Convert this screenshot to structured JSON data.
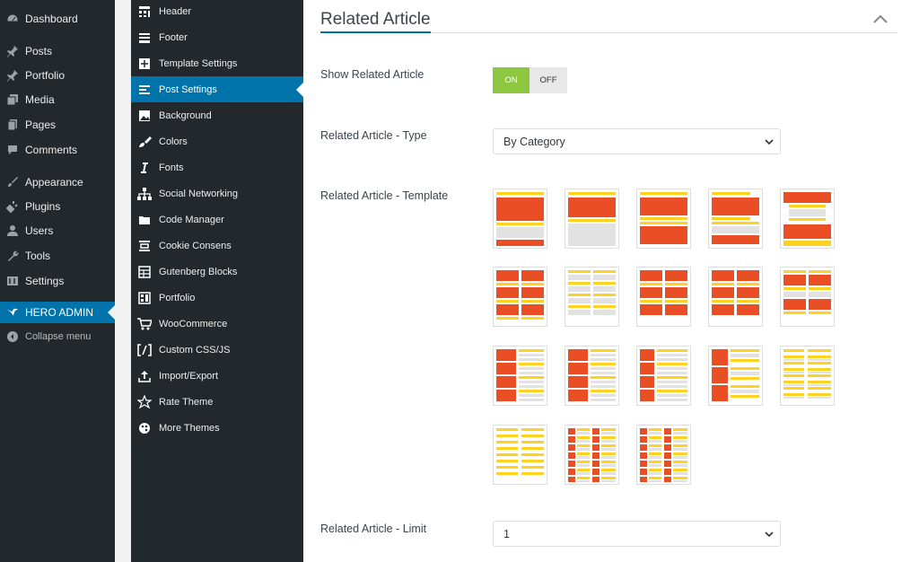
{
  "wp_menu": {
    "items": [
      {
        "label": "Dashboard",
        "icon": "dashboard-icon"
      },
      {
        "label": "Posts",
        "icon": "pin-icon"
      },
      {
        "label": "Portfolio",
        "icon": "pin-icon"
      },
      {
        "label": "Media",
        "icon": "media-icon"
      },
      {
        "label": "Pages",
        "icon": "pages-icon"
      },
      {
        "label": "Comments",
        "icon": "comment-icon"
      },
      {
        "label": "Appearance",
        "icon": "brush-icon"
      },
      {
        "label": "Plugins",
        "icon": "plugin-icon"
      },
      {
        "label": "Users",
        "icon": "user-icon"
      },
      {
        "label": "Tools",
        "icon": "wrench-icon"
      },
      {
        "label": "Settings",
        "icon": "settings-icon"
      },
      {
        "label": "HERO ADMIN",
        "icon": "bird-icon"
      },
      {
        "label": "Collapse menu",
        "icon": "collapse-icon"
      }
    ]
  },
  "theme_menu": {
    "items": [
      {
        "label": "Header"
      },
      {
        "label": "Footer"
      },
      {
        "label": "Template Settings"
      },
      {
        "label": "Post Settings"
      },
      {
        "label": "Background"
      },
      {
        "label": "Colors"
      },
      {
        "label": "Fonts"
      },
      {
        "label": "Social Networking"
      },
      {
        "label": "Code Manager"
      },
      {
        "label": "Cookie Consens"
      },
      {
        "label": "Gutenberg Blocks"
      },
      {
        "label": "Portfolio"
      },
      {
        "label": "WooCommerce"
      },
      {
        "label": "Custom CSS/JS"
      },
      {
        "label": "Import/Export"
      },
      {
        "label": "Rate Theme"
      },
      {
        "label": "More Themes"
      }
    ]
  },
  "main": {
    "section_title": "Related Article",
    "show_label": "Show Related Article",
    "toggle_on": "ON",
    "toggle_off": "OFF",
    "type_label": "Related Article - Type",
    "type_value": "By Category",
    "template_label": "Related Article - Template",
    "limit_label": "Related Article - Limit",
    "limit_value": "1"
  },
  "colors": {
    "accent": "#0073aa",
    "toggle_on": "#8dc63f",
    "template_red": "#e94e24",
    "template_yellow": "#ffd21f",
    "template_gray": "#e2e2e2"
  }
}
